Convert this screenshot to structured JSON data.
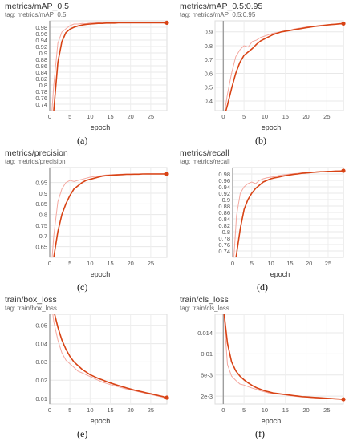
{
  "chart_data": [
    {
      "id": "a",
      "type": "line",
      "title": "metrics/mAP_0.5",
      "tag": "tag: metrics/mAP_0.5",
      "xlabel": "epoch",
      "caption": "(a)",
      "xlim": [
        0,
        29
      ],
      "ylim": [
        0.72,
        1.0
      ],
      "xticks": [
        "0",
        "5",
        "10",
        "15",
        "20",
        "25"
      ],
      "yticks": [
        "0.98",
        "0.96",
        "0.94",
        "0.92",
        "0.9",
        "0.88",
        "0.86",
        "0.84",
        "0.82",
        "0.8",
        "0.78",
        "0.76",
        "0.74"
      ],
      "ytick_values": [
        0.98,
        0.96,
        0.94,
        0.92,
        0.9,
        0.88,
        0.86,
        0.84,
        0.82,
        0.8,
        0.78,
        0.76,
        0.74
      ],
      "series": [
        {
          "values": [
            0.62,
            0.72,
            0.87,
            0.935,
            0.963,
            0.974,
            0.98,
            0.984,
            0.987,
            0.989,
            0.99,
            0.991,
            0.992,
            0.992,
            0.993,
            0.993,
            0.993,
            0.994,
            0.994,
            0.994,
            0.994,
            0.994,
            0.994,
            0.994,
            0.994,
            0.994,
            0.994,
            0.994,
            0.994,
            0.994
          ]
        },
        {
          "values": [
            0.62,
            0.8,
            0.93,
            0.965,
            0.975,
            0.985,
            0.99,
            0.99,
            0.992,
            0.991,
            0.993,
            0.993,
            0.994,
            0.993,
            0.994,
            0.994,
            0.994,
            0.994,
            0.995,
            0.994,
            0.994,
            0.995,
            0.994,
            0.995,
            0.994,
            0.994,
            0.995,
            0.994,
            0.994,
            0.994
          ]
        }
      ],
      "colors": {
        "smoothed": "#d84315",
        "raw": "#f4a8a0",
        "zero_line": "#9e9e9e"
      }
    },
    {
      "id": "b",
      "type": "line",
      "title": "metrics/mAP_0.5:0.95",
      "tag": "tag: metrics/mAP_0.5:0.95",
      "xlabel": "epoch",
      "caption": "(b)",
      "xlim": [
        -2,
        29
      ],
      "ylim": [
        0.33,
        0.98
      ],
      "xticks": [
        "0",
        "5",
        "10",
        "15",
        "20",
        "25"
      ],
      "yticks": [
        "0.9",
        "0.8",
        "0.7",
        "0.6",
        "0.5",
        "0.4"
      ],
      "ytick_values": [
        0.9,
        0.8,
        0.7,
        0.6,
        0.5,
        0.4
      ],
      "series": [
        {
          "values": [
            0.26,
            0.37,
            0.49,
            0.6,
            0.68,
            0.73,
            0.755,
            0.78,
            0.81,
            0.835,
            0.85,
            0.865,
            0.88,
            0.89,
            0.9,
            0.905,
            0.91,
            0.915,
            0.92,
            0.925,
            0.93,
            0.935,
            0.94,
            0.943,
            0.946,
            0.95,
            0.953,
            0.955,
            0.958,
            0.96
          ]
        },
        {
          "values": [
            0.26,
            0.45,
            0.6,
            0.72,
            0.77,
            0.8,
            0.79,
            0.83,
            0.84,
            0.86,
            0.87,
            0.88,
            0.89,
            0.895,
            0.9,
            0.91,
            0.91,
            0.92,
            0.925,
            0.93,
            0.935,
            0.94,
            0.94,
            0.945,
            0.95,
            0.95,
            0.955,
            0.955,
            0.96,
            0.96
          ]
        }
      ],
      "colors": {
        "smoothed": "#d84315",
        "raw": "#f4a8a0",
        "zero_line": "#9e9e9e"
      }
    },
    {
      "id": "c",
      "type": "line",
      "title": "metrics/precision",
      "tag": "tag: metrics/precision",
      "xlabel": "epoch",
      "caption": "(c)",
      "xlim": [
        0,
        29
      ],
      "ylim": [
        0.6,
        1.02
      ],
      "xticks": [
        "0",
        "5",
        "10",
        "15",
        "20",
        "25"
      ],
      "yticks": [
        "0.95",
        "0.9",
        "0.85",
        "0.8",
        "0.75",
        "0.7",
        "0.65"
      ],
      "ytick_values": [
        0.95,
        0.9,
        0.85,
        0.8,
        0.75,
        0.7,
        0.65
      ],
      "series": [
        {
          "values": [
            0.45,
            0.6,
            0.72,
            0.8,
            0.85,
            0.89,
            0.92,
            0.935,
            0.95,
            0.96,
            0.965,
            0.97,
            0.975,
            0.98,
            0.982,
            0.984,
            0.985,
            0.986,
            0.987,
            0.988,
            0.988,
            0.989,
            0.989,
            0.99,
            0.99,
            0.99,
            0.99,
            0.99,
            0.99,
            0.99
          ]
        },
        {
          "values": [
            0.45,
            0.7,
            0.86,
            0.92,
            0.95,
            0.96,
            0.955,
            0.96,
            0.965,
            0.97,
            0.975,
            0.978,
            0.98,
            0.983,
            0.985,
            0.986,
            0.987,
            0.988,
            0.989,
            0.99,
            0.99,
            0.99,
            0.99,
            0.99,
            0.991,
            0.991,
            0.991,
            0.991,
            0.991,
            0.991
          ]
        }
      ],
      "colors": {
        "smoothed": "#d84315",
        "raw": "#f4a8a0",
        "zero_line": "#9e9e9e"
      }
    },
    {
      "id": "d",
      "type": "line",
      "title": "metrics/recall",
      "tag": "tag: metrics/recall",
      "xlabel": "epoch",
      "caption": "(d)",
      "xlim": [
        0,
        29
      ],
      "ylim": [
        0.72,
        1.0
      ],
      "xticks": [
        "0",
        "5",
        "10",
        "15",
        "20",
        "25"
      ],
      "yticks": [
        "0.98",
        "0.96",
        "0.94",
        "0.92",
        "0.9",
        "0.88",
        "0.86",
        "0.84",
        "0.82",
        "0.8",
        "0.78",
        "0.76",
        "0.74"
      ],
      "ytick_values": [
        0.98,
        0.96,
        0.94,
        0.92,
        0.9,
        0.88,
        0.86,
        0.84,
        0.82,
        0.8,
        0.78,
        0.76,
        0.74
      ],
      "series": [
        {
          "values": [
            0.66,
            0.73,
            0.81,
            0.87,
            0.9,
            0.92,
            0.935,
            0.945,
            0.955,
            0.96,
            0.965,
            0.968,
            0.97,
            0.973,
            0.975,
            0.977,
            0.979,
            0.98,
            0.982,
            0.983,
            0.984,
            0.985,
            0.986,
            0.987,
            0.987,
            0.988,
            0.988,
            0.989,
            0.989,
            0.99
          ]
        },
        {
          "values": [
            0.66,
            0.85,
            0.92,
            0.94,
            0.95,
            0.955,
            0.95,
            0.96,
            0.965,
            0.968,
            0.97,
            0.972,
            0.975,
            0.977,
            0.978,
            0.98,
            0.981,
            0.982,
            0.983,
            0.985,
            0.985,
            0.986,
            0.987,
            0.987,
            0.988,
            0.988,
            0.989,
            0.989,
            0.99,
            0.99
          ]
        }
      ],
      "colors": {
        "smoothed": "#d84315",
        "raw": "#f4a8a0",
        "zero_line": "#9e9e9e"
      }
    },
    {
      "id": "e",
      "type": "line",
      "title": "train/box_loss",
      "tag": "tag: train/box_loss",
      "xlabel": "epoch",
      "caption": "(e)",
      "xlim": [
        0,
        29
      ],
      "ylim": [
        0.007,
        0.056
      ],
      "xticks": [
        "0",
        "5",
        "10",
        "15",
        "20",
        "25"
      ],
      "yticks": [
        "0.05",
        "0.04",
        "0.03",
        "0.02",
        "0.01"
      ],
      "ytick_values": [
        0.05,
        0.04,
        0.03,
        0.02,
        0.01
      ],
      "series": [
        {
          "values": [
            0.07,
            0.058,
            0.049,
            0.042,
            0.037,
            0.033,
            0.03,
            0.028,
            0.026,
            0.0245,
            0.023,
            0.022,
            0.021,
            0.0202,
            0.0193,
            0.0185,
            0.0178,
            0.0171,
            0.0165,
            0.0158,
            0.0152,
            0.0146,
            0.0141,
            0.0136,
            0.0131,
            0.0126,
            0.0121,
            0.0116,
            0.0111,
            0.0105
          ]
        },
        {
          "values": [
            0.07,
            0.052,
            0.042,
            0.035,
            0.031,
            0.029,
            0.027,
            0.025,
            0.024,
            0.023,
            0.022,
            0.021,
            0.02,
            0.019,
            0.0183,
            0.0176,
            0.017,
            0.0164,
            0.0158,
            0.0152,
            0.0147,
            0.0142,
            0.0137,
            0.0132,
            0.0127,
            0.0122,
            0.0117,
            0.0112,
            0.0107,
            0.0102
          ]
        }
      ],
      "colors": {
        "smoothed": "#d84315",
        "raw": "#f4a8a0",
        "zero_line": "#9e9e9e"
      }
    },
    {
      "id": "f",
      "type": "line",
      "title": "train/cls_loss",
      "tag": "tag: train/cls_loss",
      "xlabel": "epoch",
      "caption": "(f)",
      "xlim": [
        -2,
        29
      ],
      "ylim": [
        0.0005,
        0.0175
      ],
      "xticks": [
        "0",
        "5",
        "10",
        "15",
        "20",
        "25"
      ],
      "yticks": [
        "0.014",
        "0.01",
        "6e-3",
        "2e-3"
      ],
      "ytick_values": [
        0.014,
        0.01,
        0.006,
        0.002
      ],
      "series": [
        {
          "values": [
            0.019,
            0.012,
            0.0085,
            0.0068,
            0.0058,
            0.0051,
            0.0045,
            0.004,
            0.0036,
            0.0033,
            0.003,
            0.0028,
            0.0026,
            0.0025,
            0.0024,
            0.0023,
            0.0022,
            0.0021,
            0.002,
            0.0019,
            0.00185,
            0.0018,
            0.00175,
            0.0017,
            0.00165,
            0.0016,
            0.00155,
            0.0015,
            0.00145,
            0.0014
          ]
        },
        {
          "values": [
            0.019,
            0.008,
            0.0058,
            0.005,
            0.0043,
            0.0041,
            0.0038,
            0.0035,
            0.0033,
            0.003,
            0.0028,
            0.0026,
            0.0025,
            0.0024,
            0.0023,
            0.0022,
            0.0021,
            0.002,
            0.0019,
            0.0019,
            0.0018,
            0.00175,
            0.0017,
            0.00165,
            0.0016,
            0.0016,
            0.00155,
            0.0015,
            0.00145,
            0.0014
          ]
        }
      ],
      "colors": {
        "smoothed": "#d84315",
        "raw": "#f4a8a0",
        "zero_line": "#9e9e9e"
      }
    }
  ]
}
